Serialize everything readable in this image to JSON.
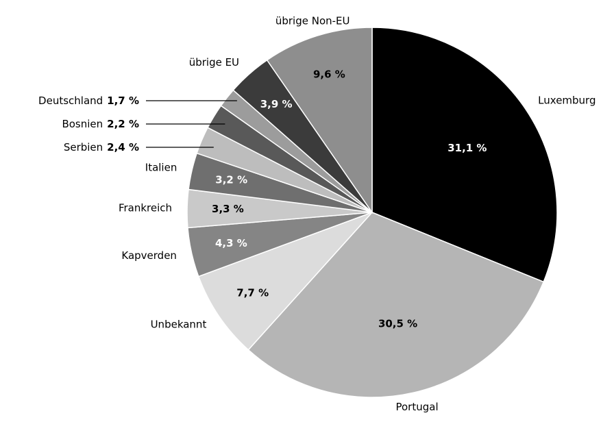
{
  "chart_data": {
    "type": "pie",
    "categories": [
      "Luxemburg",
      "Portugal",
      "Unbekannt",
      "Kapverden",
      "Frankreich",
      "Italien",
      "Serbien",
      "Bosnien",
      "Deutschland",
      "übrige EU",
      "übrige Non-EU"
    ],
    "values": [
      31.1,
      30.5,
      7.7,
      4.3,
      3.3,
      3.2,
      2.4,
      2.2,
      1.7,
      3.9,
      9.6
    ],
    "value_labels": [
      "31,1 %",
      "30,5 %",
      "7,7 %",
      "4,3 %",
      "3,3 %",
      "3,2 %",
      "2,4 %",
      "2,2 %",
      "1,7 %",
      "3,9 %",
      "9,6 %"
    ],
    "colors": [
      "#000000",
      "#b5b5b5",
      "#dcdcdc",
      "#858585",
      "#c9c9c9",
      "#6f6f6f",
      "#bdbdbd",
      "#595959",
      "#9c9c9c",
      "#3b3b3b",
      "#8e8e8e"
    ]
  }
}
